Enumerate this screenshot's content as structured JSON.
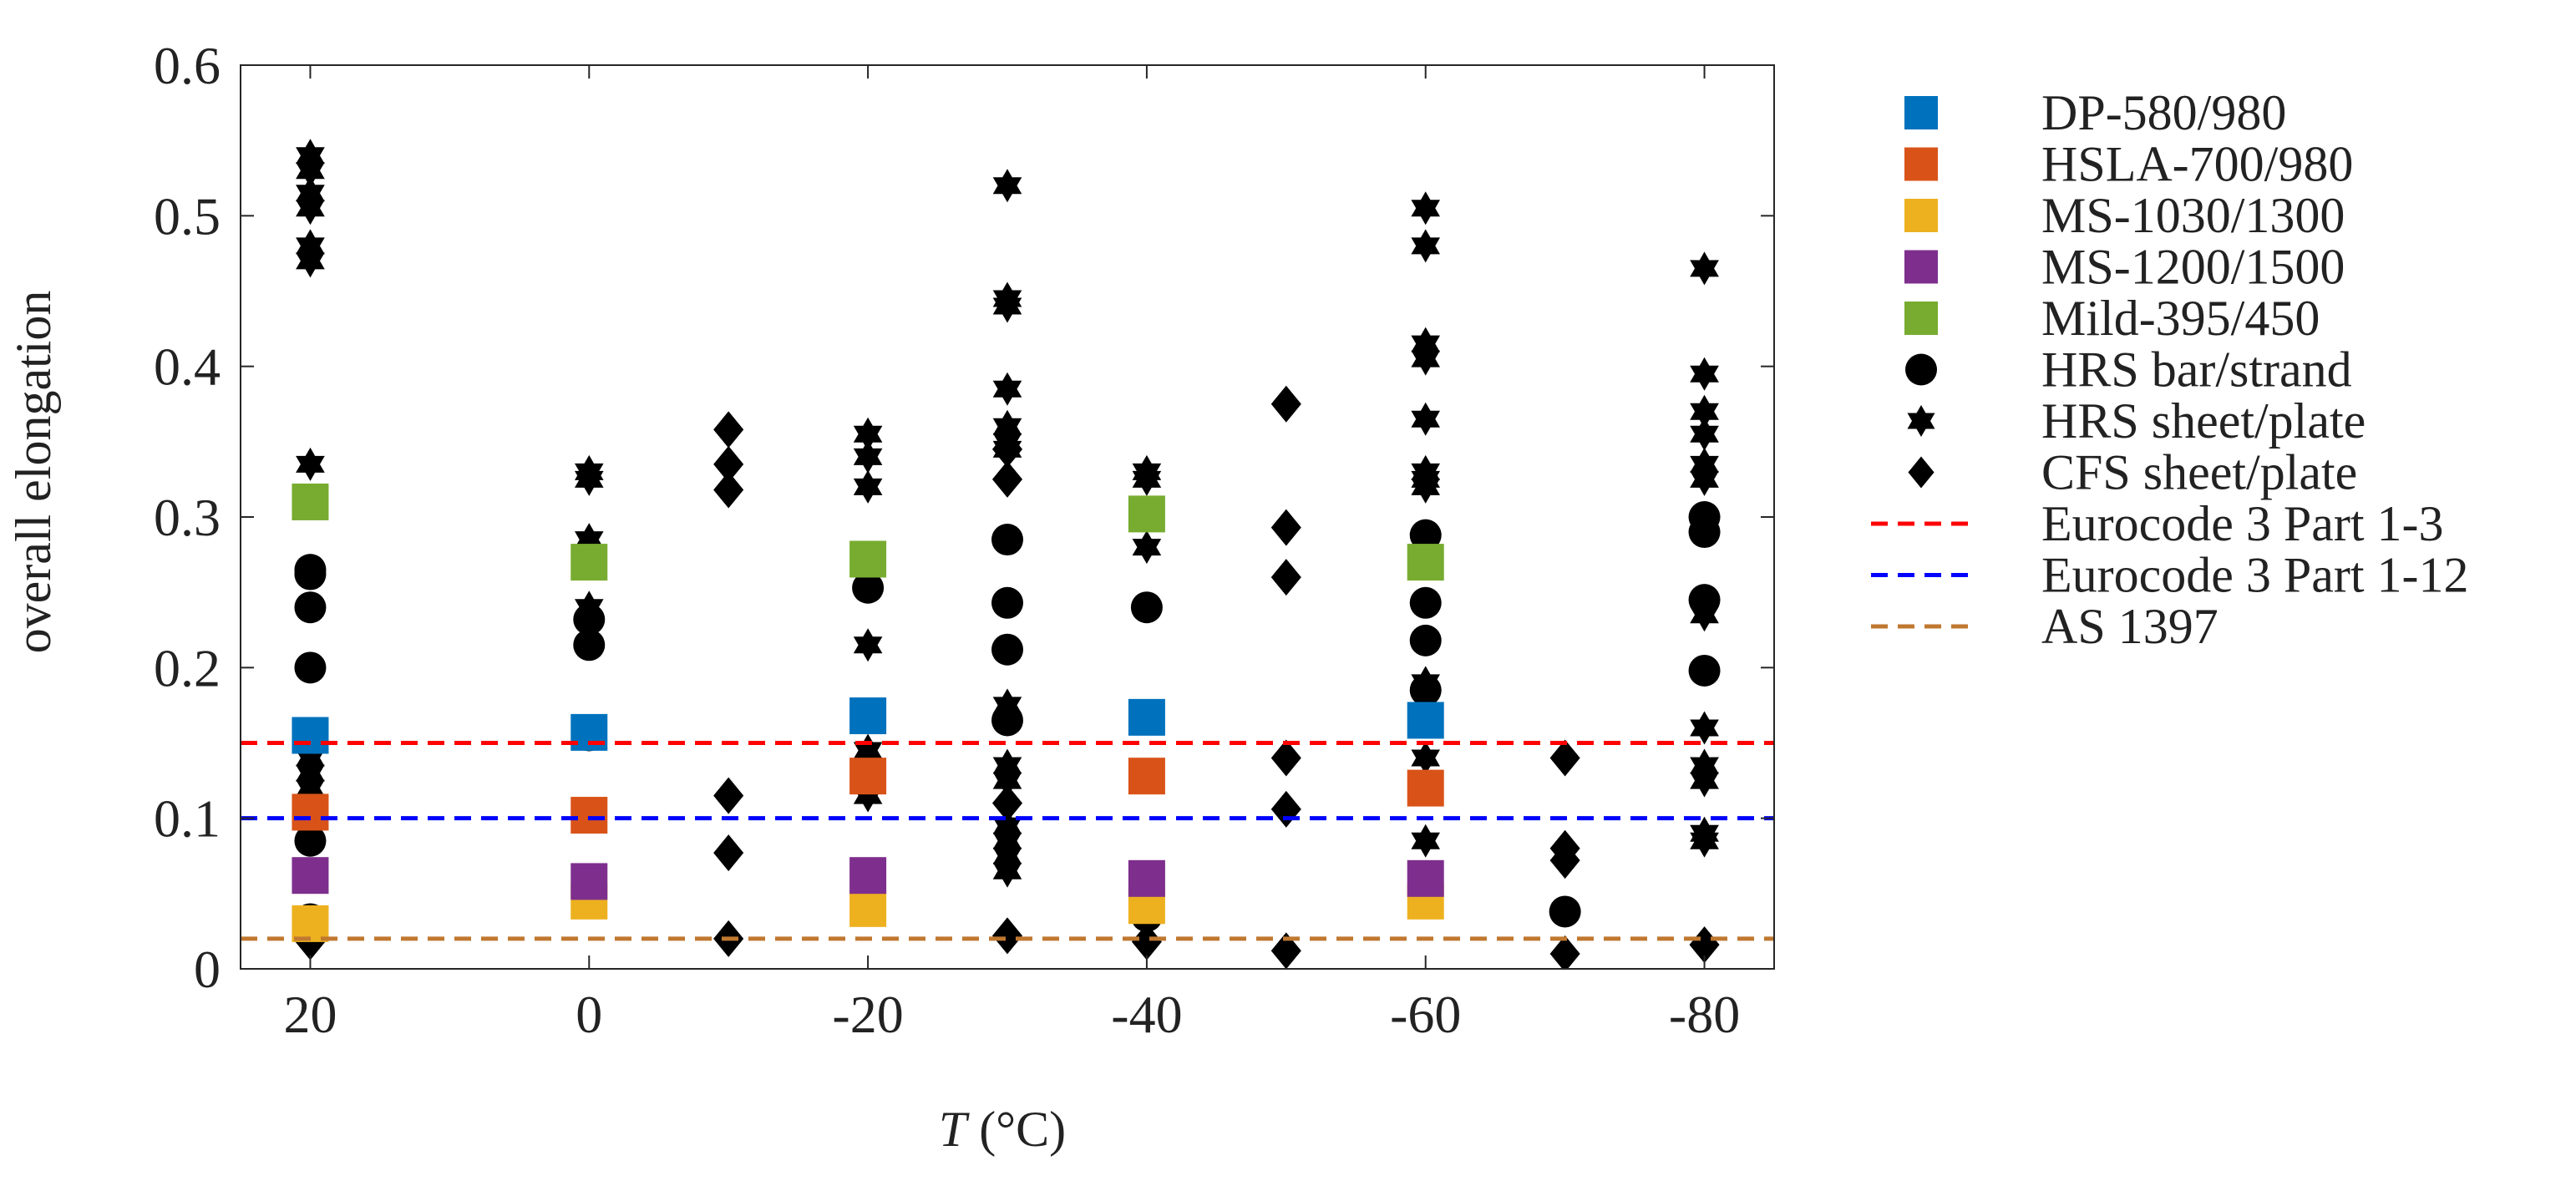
{
  "chart_data": {
    "type": "scatter",
    "title": "",
    "xlabel": "T (°C)",
    "xlabel_var": "T",
    "xlabel_unit": " (°C)",
    "ylabel": "overall elongation",
    "xlim": [
      25,
      -85
    ],
    "ylim": [
      0,
      0.6
    ],
    "xticks": [
      20,
      0,
      -20,
      -40,
      -60,
      -80
    ],
    "xtick_labels": [
      "20",
      "0",
      "-20",
      "-40",
      "-60",
      "-80"
    ],
    "yticks": [
      0,
      0.1,
      0.2,
      0.3,
      0.4,
      0.5,
      0.6
    ],
    "ytick_labels": [
      "0",
      "0.1",
      "0.2",
      "0.3",
      "0.4",
      "0.5",
      "0.6"
    ],
    "grid": false,
    "legend_position": "outside-right",
    "series": [
      {
        "name": "DP-580/980",
        "marker": "square",
        "color": "#0072BD",
        "points": [
          [
            20,
            0.155
          ],
          [
            0,
            0.157
          ],
          [
            -20,
            0.168
          ],
          [
            -40,
            0.167
          ],
          [
            -60,
            0.165
          ]
        ]
      },
      {
        "name": "HSLA-700/980",
        "marker": "square",
        "color": "#D95319",
        "points": [
          [
            20,
            0.104
          ],
          [
            0,
            0.102
          ],
          [
            -20,
            0.128
          ],
          [
            -40,
            0.128
          ],
          [
            -60,
            0.12
          ]
        ]
      },
      {
        "name": "MS-1030/1300",
        "marker": "square",
        "color": "#EDB120",
        "points": [
          [
            20,
            0.03
          ],
          [
            0,
            0.045
          ],
          [
            -20,
            0.04
          ],
          [
            -40,
            0.042
          ],
          [
            -60,
            0.045
          ]
        ]
      },
      {
        "name": "MS-1200/1500",
        "marker": "square",
        "color": "#7E2F8E",
        "points": [
          [
            20,
            0.062
          ],
          [
            0,
            0.058
          ],
          [
            -20,
            0.062
          ],
          [
            -40,
            0.06
          ],
          [
            -60,
            0.06
          ]
        ]
      },
      {
        "name": "Mild-395/450",
        "marker": "square",
        "color": "#77AC30",
        "points": [
          [
            20,
            0.31
          ],
          [
            0,
            0.27
          ],
          [
            -20,
            0.272
          ],
          [
            -40,
            0.302
          ],
          [
            -60,
            0.27
          ]
        ]
      },
      {
        "name": "HRS bar/strand",
        "marker": "circle",
        "color": "#000000",
        "points": [
          [
            20,
            0.265
          ],
          [
            20,
            0.262
          ],
          [
            20,
            0.24
          ],
          [
            20,
            0.2
          ],
          [
            20,
            0.085
          ],
          [
            20,
            0.033
          ],
          [
            0,
            0.232
          ],
          [
            0,
            0.215
          ],
          [
            0,
            0.155
          ],
          [
            -20,
            0.253
          ],
          [
            -30,
            0.285
          ],
          [
            -30,
            0.243
          ],
          [
            -30,
            0.212
          ],
          [
            -30,
            0.165
          ],
          [
            -40,
            0.24
          ],
          [
            -40,
            0.035
          ],
          [
            -60,
            0.288
          ],
          [
            -60,
            0.243
          ],
          [
            -60,
            0.218
          ],
          [
            -60,
            0.185
          ],
          [
            -70,
            0.038
          ],
          [
            -80,
            0.3
          ],
          [
            -80,
            0.29
          ],
          [
            -80,
            0.245
          ],
          [
            -80,
            0.198
          ]
        ]
      },
      {
        "name": "HRS sheet/plate",
        "marker": "hexagram",
        "color": "#000000",
        "points": [
          [
            20,
            0.54
          ],
          [
            20,
            0.53
          ],
          [
            20,
            0.515
          ],
          [
            20,
            0.505
          ],
          [
            20,
            0.48
          ],
          [
            20,
            0.47
          ],
          [
            20,
            0.335
          ],
          [
            20,
            0.14
          ],
          [
            20,
            0.13
          ],
          [
            20,
            0.12
          ],
          [
            0,
            0.33
          ],
          [
            0,
            0.325
          ],
          [
            0,
            0.285
          ],
          [
            0,
            0.24
          ],
          [
            -20,
            0.355
          ],
          [
            -20,
            0.34
          ],
          [
            -20,
            0.32
          ],
          [
            -20,
            0.215
          ],
          [
            -20,
            0.145
          ],
          [
            -20,
            0.115
          ],
          [
            -30,
            0.52
          ],
          [
            -30,
            0.445
          ],
          [
            -30,
            0.44
          ],
          [
            -30,
            0.385
          ],
          [
            -30,
            0.36
          ],
          [
            -30,
            0.35
          ],
          [
            -30,
            0.345
          ],
          [
            -30,
            0.175
          ],
          [
            -30,
            0.135
          ],
          [
            -30,
            0.125
          ],
          [
            -30,
            0.095
          ],
          [
            -30,
            0.085
          ],
          [
            -30,
            0.075
          ],
          [
            -30,
            0.065
          ],
          [
            -40,
            0.33
          ],
          [
            -40,
            0.325
          ],
          [
            -40,
            0.28
          ],
          [
            -60,
            0.505
          ],
          [
            -60,
            0.48
          ],
          [
            -60,
            0.415
          ],
          [
            -60,
            0.405
          ],
          [
            -60,
            0.365
          ],
          [
            -60,
            0.33
          ],
          [
            -60,
            0.325
          ],
          [
            -60,
            0.32
          ],
          [
            -60,
            0.19
          ],
          [
            -60,
            0.14
          ],
          [
            -60,
            0.085
          ],
          [
            -80,
            0.465
          ],
          [
            -80,
            0.395
          ],
          [
            -80,
            0.37
          ],
          [
            -80,
            0.355
          ],
          [
            -80,
            0.335
          ],
          [
            -80,
            0.325
          ],
          [
            -80,
            0.235
          ],
          [
            -80,
            0.16
          ],
          [
            -80,
            0.135
          ],
          [
            -80,
            0.125
          ],
          [
            -80,
            0.09
          ],
          [
            -80,
            0.085
          ]
        ]
      },
      {
        "name": "CFS sheet/plate",
        "marker": "diamond",
        "color": "#000000",
        "points": [
          [
            20,
            0.018
          ],
          [
            -10,
            0.358
          ],
          [
            -10,
            0.335
          ],
          [
            -10,
            0.318
          ],
          [
            -10,
            0.115
          ],
          [
            -10,
            0.077
          ],
          [
            -10,
            0.02
          ],
          [
            -30,
            0.345
          ],
          [
            -30,
            0.325
          ],
          [
            -30,
            0.11
          ],
          [
            -30,
            0.022
          ],
          [
            -40,
            0.018
          ],
          [
            -50,
            0.375
          ],
          [
            -50,
            0.293
          ],
          [
            -50,
            0.26
          ],
          [
            -50,
            0.14
          ],
          [
            -50,
            0.106
          ],
          [
            -50,
            0.012
          ],
          [
            -70,
            0.14
          ],
          [
            -70,
            0.08
          ],
          [
            -70,
            0.072
          ],
          [
            -70,
            0.01
          ],
          [
            -80,
            0.016
          ]
        ]
      },
      {
        "name": "Eurocode 3 Part 1-3",
        "marker": "hline",
        "color": "#FF0000",
        "value": 0.15
      },
      {
        "name": "Eurocode 3 Part 1-12",
        "marker": "hline",
        "color": "#0000FF",
        "value": 0.1
      },
      {
        "name": "AS 1397",
        "marker": "hline",
        "color": "#C07830",
        "value": 0.02
      }
    ]
  }
}
